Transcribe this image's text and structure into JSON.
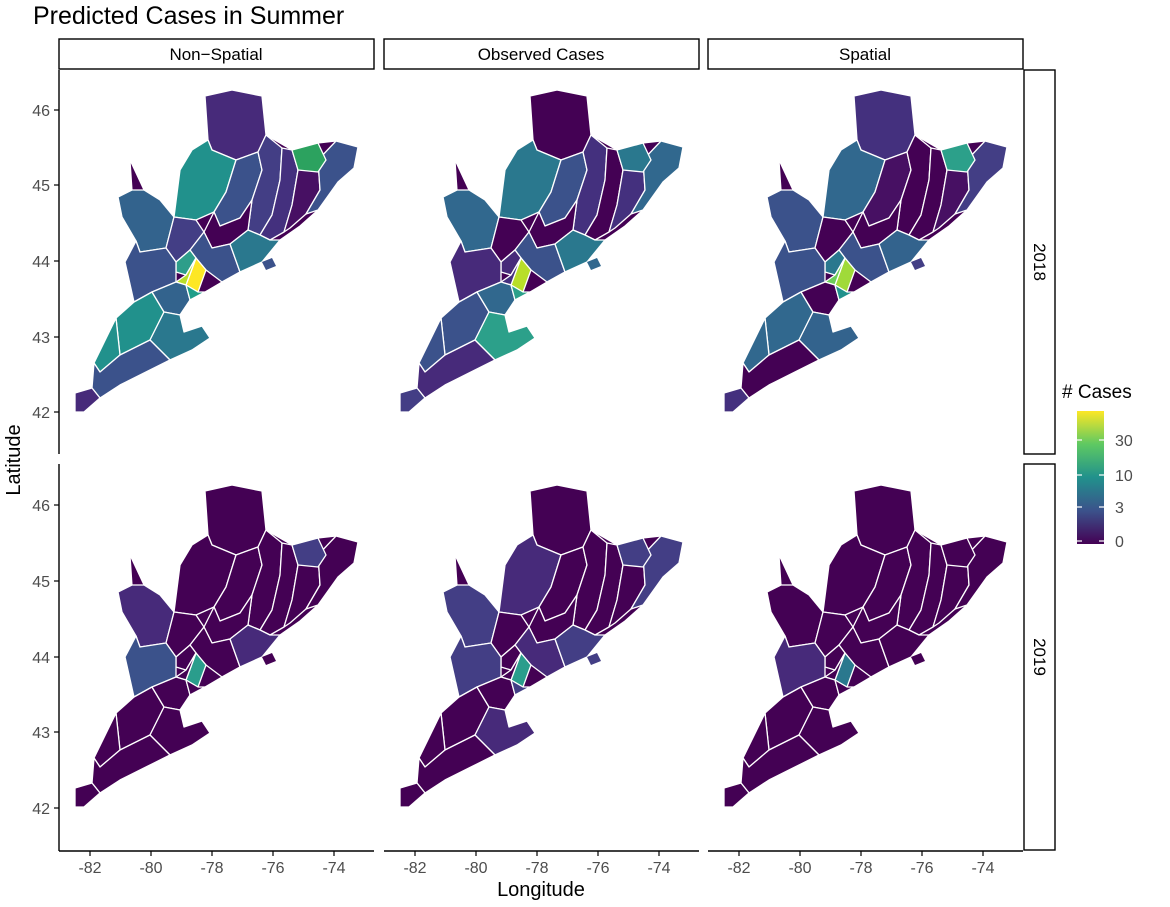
{
  "title": "Predicted Cases in Summer",
  "facets": {
    "columns": [
      "Non−Spatial",
      "Observed Cases",
      "Spatial"
    ],
    "rows": [
      "2018",
      "2019"
    ]
  },
  "axes": {
    "x_label": "Longitude",
    "y_label": "Latitude",
    "x_ticks": [
      "-82",
      "-80",
      "-78",
      "-76",
      "-74"
    ],
    "y_ticks": [
      "42",
      "43",
      "44",
      "45",
      "46"
    ]
  },
  "legend": {
    "title": "# Cases",
    "labels": [
      "30",
      "10",
      "3",
      "0"
    ],
    "palette": [
      "#440154",
      "#3b528b",
      "#21918c",
      "#5ec962",
      "#fde725"
    ]
  },
  "map_colors": {
    "p18": [
      [
        "#472a7a",
        "#21918c",
        "#33638d",
        "#3b528b",
        "#433e85",
        "#44307e",
        "#440154",
        "#471063",
        "#3b528b",
        "#2ca25f",
        "#433e85",
        "#3b528b",
        "#2a788e",
        "#2e9e8a",
        "#fde725",
        "#b8de29",
        "#3b528b",
        "#21918c",
        "#33638d",
        "#2a788e",
        "#21918c",
        "#3b528b",
        "#472a7a",
        "#1f9e89"
      ],
      [
        "#440154",
        "#2a788e",
        "#31688e",
        "#3b528b",
        "#44307e",
        "#440154",
        "#440154",
        "#44307e",
        "#31688e",
        "#2a788e",
        "#440154",
        "#3b528b",
        "#2a788e",
        "#472a7a",
        "#b8de29",
        "#44307e",
        "#472a7a",
        "#3b528b",
        "#31688e",
        "#2ca08a",
        "#3b528b",
        "#472a7a",
        "#433e85",
        "#2ca08a"
      ],
      [
        "#44307e",
        "#31688e",
        "#3b528b",
        "#471063",
        "#440154",
        "#440154",
        "#440154",
        "#471063",
        "#433e85",
        "#2ca08a",
        "#440154",
        "#3b528b",
        "#33638d",
        "#2a788e",
        "#a0da39",
        "#6ccd5a",
        "#3b528b",
        "#31688e",
        "#440154",
        "#33638d",
        "#31688e",
        "#440154",
        "#44307e",
        "#21918c"
      ]
    ],
    "p19": [
      [
        "#440154",
        "#440154",
        "#472a7a",
        "#440154",
        "#440154",
        "#440154",
        "#440154",
        "#440154",
        "#440154",
        "#433e85",
        "#440154",
        "#440154",
        "#472a7a",
        "#440154",
        "#2a9d8c",
        "#440154",
        "#3b528b",
        "#440154",
        "#440154",
        "#440154",
        "#440154",
        "#440154",
        "#440154",
        "#440154"
      ],
      [
        "#440154",
        "#472a7a",
        "#433e85",
        "#440154",
        "#440154",
        "#440154",
        "#440154",
        "#440154",
        "#433e85",
        "#433e85",
        "#440154",
        "#472a7a",
        "#433e85",
        "#440154",
        "#2a9d8c",
        "#440154",
        "#433e85",
        "#440154",
        "#440154",
        "#472a7a",
        "#440154",
        "#440154",
        "#440154",
        "#433e85"
      ],
      [
        "#440154",
        "#440154",
        "#440154",
        "#440154",
        "#440154",
        "#440154",
        "#440154",
        "#440154",
        "#440154",
        "#440154",
        "#440154",
        "#440154",
        "#440154",
        "#440154",
        "#2a788e",
        "#440154",
        "#472a7a",
        "#440154",
        "#440154",
        "#440154",
        "#440154",
        "#440154",
        "#440154",
        "#440154"
      ]
    ]
  }
}
